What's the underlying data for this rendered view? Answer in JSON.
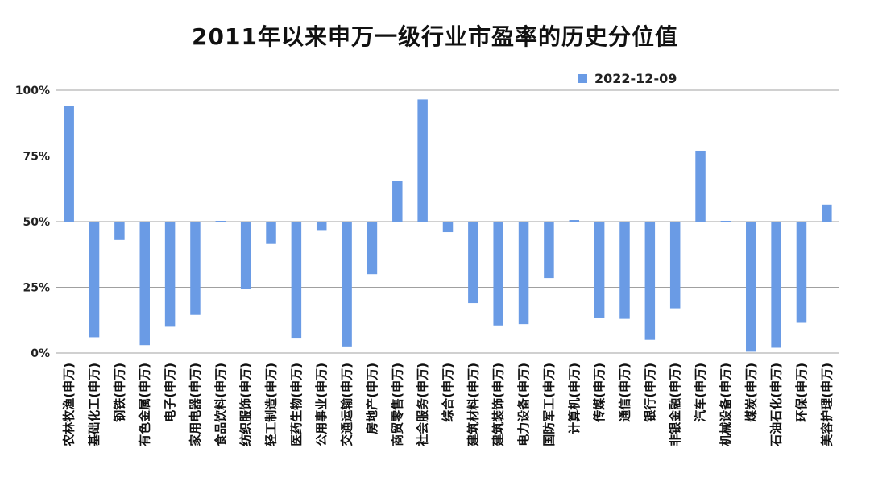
{
  "chart_data": {
    "type": "bar",
    "title": "2011年以来申万一级行业市盈率的历史分位值",
    "legend_position": "top-right",
    "grid": true,
    "baseline": 50,
    "ylim": [
      0,
      100
    ],
    "yticks": [
      0,
      25,
      50,
      75,
      100
    ],
    "ytick_labels": [
      "0%",
      "25%",
      "50%",
      "75%",
      "100%"
    ],
    "bar_color": "#6a9be5",
    "categories": [
      "农林牧渔(申万)",
      "基础化工(申万)",
      "钢铁(申万)",
      "有色金属(申万)",
      "电子(申万)",
      "家用电器(申万)",
      "食品饮料(申万)",
      "纺织服饰(申万)",
      "轻工制造(申万)",
      "医药生物(申万)",
      "公用事业(申万)",
      "交通运输(申万)",
      "房地产(申万)",
      "商贸零售(申万)",
      "社会服务(申万)",
      "综合(申万)",
      "建筑材料(申万)",
      "建筑装饰(申万)",
      "电力设备(申万)",
      "国防军工(申万)",
      "计算机(申万)",
      "传媒(申万)",
      "通信(申万)",
      "银行(申万)",
      "非银金融(申万)",
      "汽车(申万)",
      "机械设备(申万)",
      "煤炭(申万)",
      "石油石化(申万)",
      "环保(申万)",
      "美容护理(申万)"
    ],
    "series": [
      {
        "name": "2022-12-09",
        "values": [
          94,
          6,
          43,
          3,
          10,
          14.5,
          50.3,
          24.5,
          41.5,
          5.5,
          46.5,
          2.5,
          30,
          65.5,
          96.5,
          46,
          19,
          10.5,
          11,
          28.5,
          50.6,
          13.5,
          13,
          5,
          17,
          77,
          50.3,
          0.5,
          2,
          11.5,
          56.5
        ]
      }
    ]
  }
}
